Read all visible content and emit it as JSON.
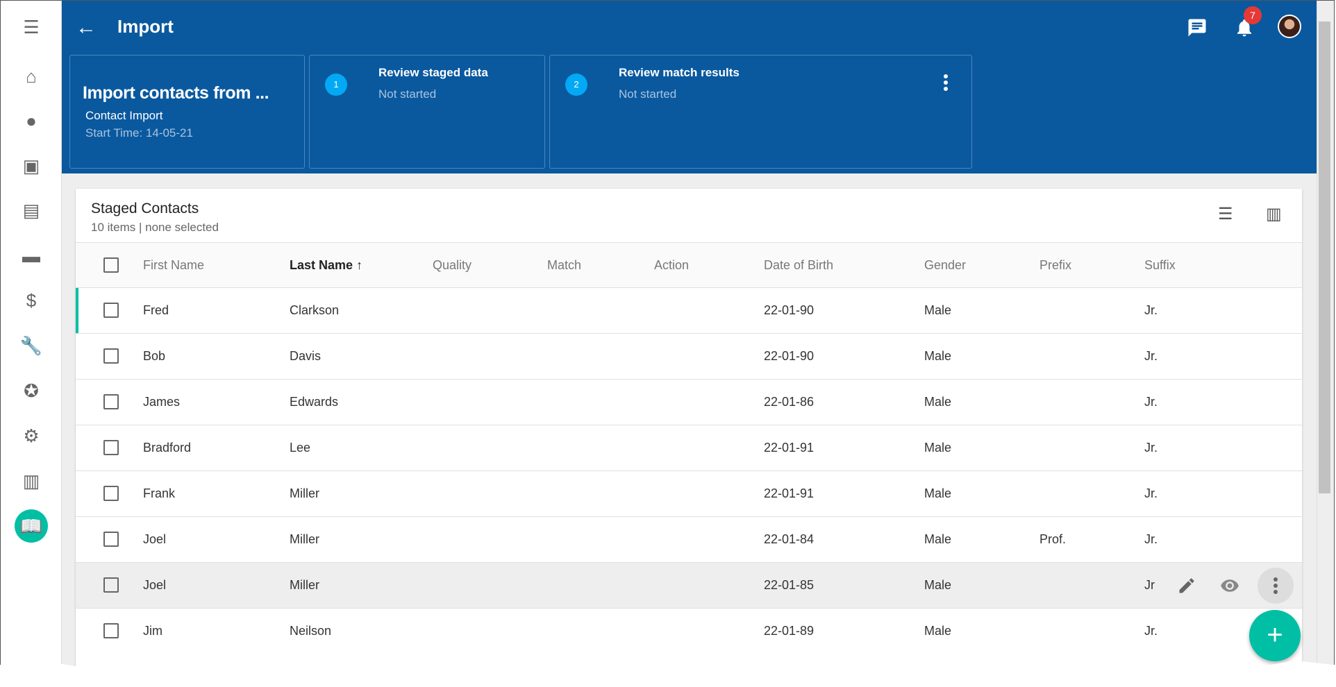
{
  "app": {
    "title": "Import",
    "notification_count": "7"
  },
  "sidebar": {
    "items": [
      "menu",
      "home",
      "account",
      "calendar",
      "clipboard",
      "folder",
      "billing",
      "wrench",
      "star",
      "settings",
      "reports",
      "book"
    ]
  },
  "summary": {
    "title": "Import contacts from ...",
    "type": "Contact Import",
    "start_time": "Start Time: 14-05-21"
  },
  "steps": [
    {
      "number": "1",
      "title": "Review staged data",
      "status": "Not started"
    },
    {
      "number": "2",
      "title": "Review match results",
      "status": "Not started"
    }
  ],
  "table": {
    "title": "Staged Contacts",
    "subtitle": "10 items | none selected",
    "columns": [
      "First Name",
      "Last Name",
      "Quality",
      "Match",
      "Action",
      "Date of Birth",
      "Gender",
      "Prefix",
      "Suffix"
    ],
    "sort": {
      "column": "Last Name",
      "direction": "ascending"
    },
    "rows": [
      {
        "first": "Fred",
        "last": "Clarkson",
        "dob": "22-01-90",
        "gender": "Male",
        "prefix": "",
        "suffix": "Jr."
      },
      {
        "first": "Bob",
        "last": "Davis",
        "dob": "22-01-90",
        "gender": "Male",
        "prefix": "",
        "suffix": "Jr."
      },
      {
        "first": "James",
        "last": "Edwards",
        "dob": "22-01-86",
        "gender": "Male",
        "prefix": "",
        "suffix": "Jr."
      },
      {
        "first": "Bradford",
        "last": "Lee",
        "dob": "22-01-91",
        "gender": "Male",
        "prefix": "",
        "suffix": "Jr."
      },
      {
        "first": "Frank",
        "last": "Miller",
        "dob": "22-01-91",
        "gender": "Male",
        "prefix": "",
        "suffix": "Jr."
      },
      {
        "first": "Joel",
        "last": "Miller",
        "dob": "22-01-84",
        "gender": "Male",
        "prefix": "Prof.",
        "suffix": "Jr."
      },
      {
        "first": "Joel",
        "last": "Miller",
        "dob": "22-01-85",
        "gender": "Male",
        "prefix": "",
        "suffix": "Jr"
      },
      {
        "first": "Jim",
        "last": "Neilson",
        "dob": "22-01-89",
        "gender": "Male",
        "prefix": "",
        "suffix": "Jr."
      }
    ]
  },
  "colors": {
    "header": "#0a599f",
    "accent": "#00bfa5",
    "step": "#03a9f4",
    "badge": "#e53935"
  }
}
